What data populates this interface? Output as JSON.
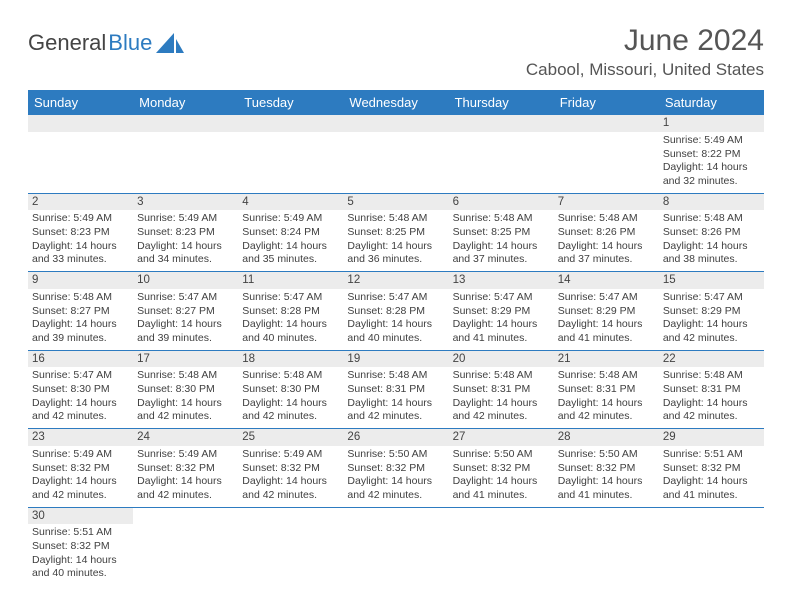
{
  "logo": {
    "text1": "General",
    "text2": "Blue"
  },
  "title": "June 2024",
  "location": "Cabool, Missouri, United States",
  "colors": {
    "header_bg": "#2d7bc0",
    "header_text": "#ffffff",
    "daynum_bg": "#ececec",
    "border": "#2d7bc0",
    "text": "#404040"
  },
  "day_headers": [
    "Sunday",
    "Monday",
    "Tuesday",
    "Wednesday",
    "Thursday",
    "Friday",
    "Saturday"
  ],
  "weeks": [
    [
      null,
      null,
      null,
      null,
      null,
      null,
      {
        "n": "1",
        "sr": "5:49 AM",
        "ss": "8:22 PM",
        "dl": "14 hours and 32 minutes."
      }
    ],
    [
      {
        "n": "2",
        "sr": "5:49 AM",
        "ss": "8:23 PM",
        "dl": "14 hours and 33 minutes."
      },
      {
        "n": "3",
        "sr": "5:49 AM",
        "ss": "8:23 PM",
        "dl": "14 hours and 34 minutes."
      },
      {
        "n": "4",
        "sr": "5:49 AM",
        "ss": "8:24 PM",
        "dl": "14 hours and 35 minutes."
      },
      {
        "n": "5",
        "sr": "5:48 AM",
        "ss": "8:25 PM",
        "dl": "14 hours and 36 minutes."
      },
      {
        "n": "6",
        "sr": "5:48 AM",
        "ss": "8:25 PM",
        "dl": "14 hours and 37 minutes."
      },
      {
        "n": "7",
        "sr": "5:48 AM",
        "ss": "8:26 PM",
        "dl": "14 hours and 37 minutes."
      },
      {
        "n": "8",
        "sr": "5:48 AM",
        "ss": "8:26 PM",
        "dl": "14 hours and 38 minutes."
      }
    ],
    [
      {
        "n": "9",
        "sr": "5:48 AM",
        "ss": "8:27 PM",
        "dl": "14 hours and 39 minutes."
      },
      {
        "n": "10",
        "sr": "5:47 AM",
        "ss": "8:27 PM",
        "dl": "14 hours and 39 minutes."
      },
      {
        "n": "11",
        "sr": "5:47 AM",
        "ss": "8:28 PM",
        "dl": "14 hours and 40 minutes."
      },
      {
        "n": "12",
        "sr": "5:47 AM",
        "ss": "8:28 PM",
        "dl": "14 hours and 40 minutes."
      },
      {
        "n": "13",
        "sr": "5:47 AM",
        "ss": "8:29 PM",
        "dl": "14 hours and 41 minutes."
      },
      {
        "n": "14",
        "sr": "5:47 AM",
        "ss": "8:29 PM",
        "dl": "14 hours and 41 minutes."
      },
      {
        "n": "15",
        "sr": "5:47 AM",
        "ss": "8:29 PM",
        "dl": "14 hours and 42 minutes."
      }
    ],
    [
      {
        "n": "16",
        "sr": "5:47 AM",
        "ss": "8:30 PM",
        "dl": "14 hours and 42 minutes."
      },
      {
        "n": "17",
        "sr": "5:48 AM",
        "ss": "8:30 PM",
        "dl": "14 hours and 42 minutes."
      },
      {
        "n": "18",
        "sr": "5:48 AM",
        "ss": "8:30 PM",
        "dl": "14 hours and 42 minutes."
      },
      {
        "n": "19",
        "sr": "5:48 AM",
        "ss": "8:31 PM",
        "dl": "14 hours and 42 minutes."
      },
      {
        "n": "20",
        "sr": "5:48 AM",
        "ss": "8:31 PM",
        "dl": "14 hours and 42 minutes."
      },
      {
        "n": "21",
        "sr": "5:48 AM",
        "ss": "8:31 PM",
        "dl": "14 hours and 42 minutes."
      },
      {
        "n": "22",
        "sr": "5:48 AM",
        "ss": "8:31 PM",
        "dl": "14 hours and 42 minutes."
      }
    ],
    [
      {
        "n": "23",
        "sr": "5:49 AM",
        "ss": "8:32 PM",
        "dl": "14 hours and 42 minutes."
      },
      {
        "n": "24",
        "sr": "5:49 AM",
        "ss": "8:32 PM",
        "dl": "14 hours and 42 minutes."
      },
      {
        "n": "25",
        "sr": "5:49 AM",
        "ss": "8:32 PM",
        "dl": "14 hours and 42 minutes."
      },
      {
        "n": "26",
        "sr": "5:50 AM",
        "ss": "8:32 PM",
        "dl": "14 hours and 42 minutes."
      },
      {
        "n": "27",
        "sr": "5:50 AM",
        "ss": "8:32 PM",
        "dl": "14 hours and 41 minutes."
      },
      {
        "n": "28",
        "sr": "5:50 AM",
        "ss": "8:32 PM",
        "dl": "14 hours and 41 minutes."
      },
      {
        "n": "29",
        "sr": "5:51 AM",
        "ss": "8:32 PM",
        "dl": "14 hours and 41 minutes."
      }
    ],
    [
      {
        "n": "30",
        "sr": "5:51 AM",
        "ss": "8:32 PM",
        "dl": "14 hours and 40 minutes."
      },
      null,
      null,
      null,
      null,
      null,
      null
    ]
  ],
  "labels": {
    "sunrise": "Sunrise:",
    "sunset": "Sunset:",
    "daylight": "Daylight:"
  }
}
